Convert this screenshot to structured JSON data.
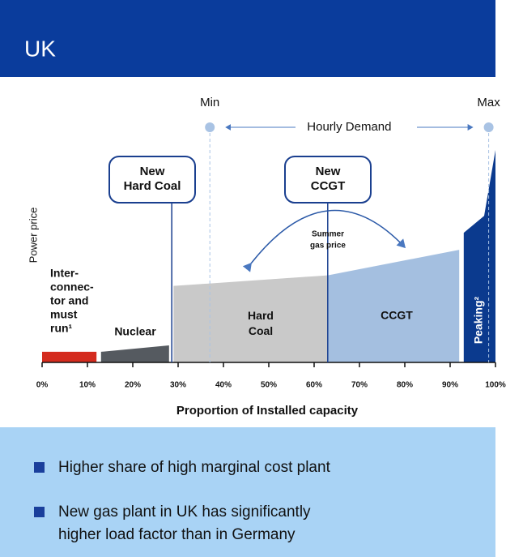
{
  "header": {
    "title": "UK"
  },
  "chart_data": {
    "type": "merit_order",
    "y_label": "Power price",
    "x_label": "Proportion of Installed capacity",
    "xlim": [
      0,
      100
    ],
    "ylim": [
      0,
      100
    ],
    "xticks": [
      {
        "value": 0,
        "label": "0%"
      },
      {
        "value": 10,
        "label": "10%"
      },
      {
        "value": 20,
        "label": "20%"
      },
      {
        "value": 30,
        "label": "30%"
      },
      {
        "value": 40,
        "label": "40%"
      },
      {
        "value": 50,
        "label": "50%"
      },
      {
        "value": 60,
        "label": "60%"
      },
      {
        "value": 70,
        "label": "70%"
      },
      {
        "value": 80,
        "label": "80%"
      },
      {
        "value": 90,
        "label": "90%"
      },
      {
        "value": 100,
        "label": "100%"
      }
    ],
    "segments": [
      {
        "name": [
          "Inter-",
          "connec-",
          "tor and",
          "must",
          "run¹"
        ],
        "color": "#d42b1e",
        "x": [
          0,
          12
        ],
        "y": [
          5,
          5
        ]
      },
      {
        "name": [
          "Nuclear"
        ],
        "color": "#555a60",
        "x": [
          13,
          28
        ],
        "y": [
          5,
          8
        ]
      },
      {
        "name": [
          "Hard",
          "Coal"
        ],
        "color": "#c9c9c9",
        "x": [
          29,
          63
        ],
        "y": [
          36,
          41
        ]
      },
      {
        "name": [
          "CCGT"
        ],
        "color": "#a4bfe0",
        "x": [
          63,
          92
        ],
        "y": [
          41,
          53
        ]
      },
      {
        "name": [
          "Peaking²"
        ],
        "color": "#0b3a8e",
        "x": [
          93,
          97.5,
          100
        ],
        "y": [
          61,
          69,
          100
        ]
      }
    ],
    "new_plants": [
      {
        "label": [
          "New",
          "Hard Coal"
        ],
        "x": 28.6
      },
      {
        "label": [
          "New",
          "CCGT"
        ],
        "x": 63
      }
    ],
    "demand": {
      "label": "Hourly Demand",
      "min_label": "Min",
      "max_label": "Max",
      "min": 37,
      "max": 98.5
    },
    "gas_note": [
      "Summer",
      "gas price"
    ]
  },
  "bullets": [
    "Higher share of high marginal cost plant",
    [
      "New gas plant in UK has significantly",
      "higher load factor than in Germany"
    ]
  ]
}
